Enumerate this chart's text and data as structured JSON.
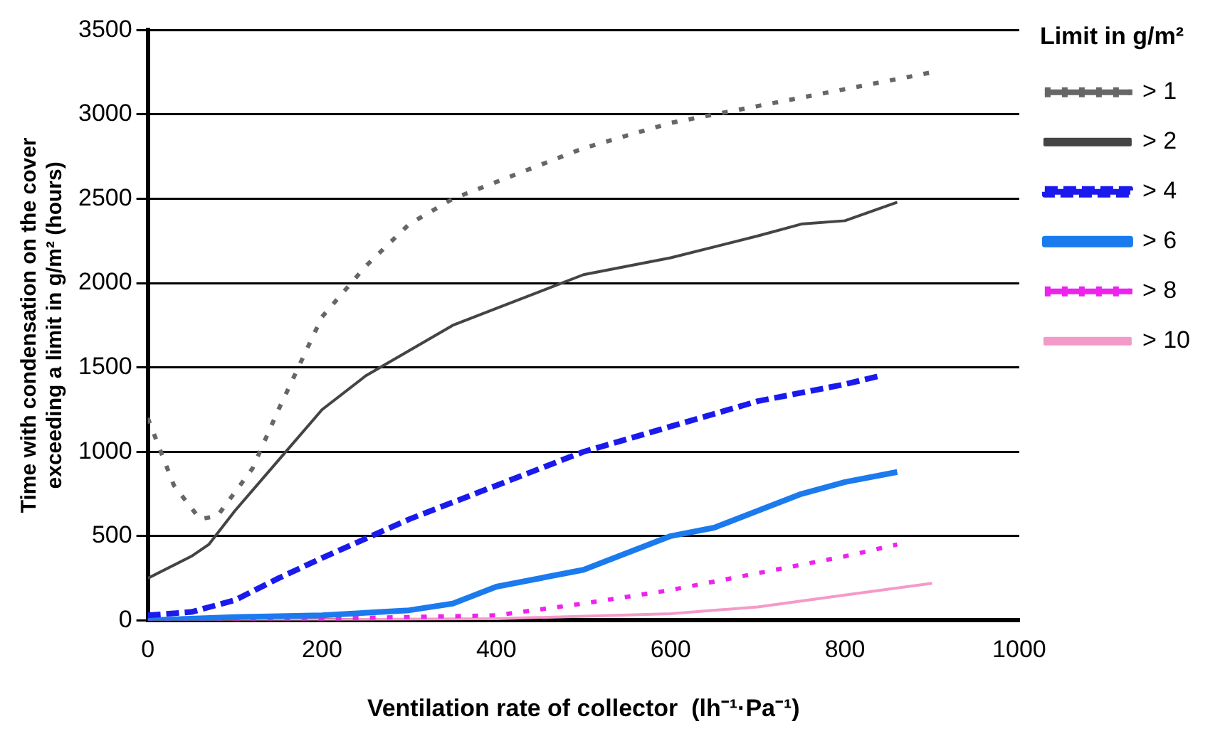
{
  "chart_data": {
    "type": "line",
    "xlabel": "Ventilation rate of collector  (lh⁻¹·Pa⁻¹)",
    "ylabel": "Time with condensation on the cover exceeding a limit in g/m² (hours)",
    "legend_title": "Limit in g/m²",
    "xlim": [
      0,
      1000
    ],
    "xticks": [
      0,
      200,
      400,
      600,
      800,
      1000
    ],
    "ylim": [
      0,
      3500
    ],
    "yticks": [
      0,
      500,
      1000,
      1500,
      2000,
      2500,
      3000,
      3500
    ],
    "grid": "y",
    "legend": "right",
    "marker": "none",
    "series": [
      {
        "name": "> 1",
        "color": "#666666",
        "line_style": "dotted",
        "x": [
          0,
          30,
          60,
          80,
          120,
          150,
          200,
          250,
          300,
          350,
          400,
          450,
          500,
          600,
          700,
          800,
          900
        ],
        "values": [
          1200,
          800,
          600,
          620,
          900,
          1250,
          1800,
          2100,
          2350,
          2500,
          2600,
          2700,
          2800,
          2950,
          3050,
          3150,
          3250
        ]
      },
      {
        "name": "> 2",
        "color": "#444444",
        "line_style": "solid",
        "x": [
          0,
          50,
          70,
          100,
          150,
          200,
          250,
          300,
          350,
          400,
          500,
          600,
          700,
          750,
          800,
          860
        ],
        "values": [
          250,
          380,
          450,
          650,
          950,
          1250,
          1450,
          1600,
          1750,
          1850,
          2050,
          2150,
          2280,
          2350,
          2370,
          2480
        ]
      },
      {
        "name": "> 4",
        "color": "#1a1aee",
        "line_style": "dashed",
        "x": [
          0,
          50,
          100,
          150,
          200,
          300,
          400,
          500,
          600,
          700,
          800,
          840
        ],
        "values": [
          30,
          50,
          120,
          250,
          370,
          600,
          800,
          1000,
          1150,
          1300,
          1400,
          1450
        ]
      },
      {
        "name": "> 6",
        "color": "#1a7aee",
        "line_style": "solid",
        "x": [
          0,
          100,
          200,
          300,
          350,
          400,
          500,
          550,
          600,
          650,
          700,
          750,
          800,
          860
        ],
        "values": [
          0,
          20,
          30,
          60,
          100,
          200,
          300,
          400,
          500,
          550,
          650,
          750,
          820,
          880
        ]
      },
      {
        "name": "> 8",
        "color": "#ee22ee",
        "line_style": "dotted",
        "x": [
          0,
          200,
          400,
          500,
          600,
          700,
          800,
          860
        ],
        "values": [
          0,
          10,
          30,
          100,
          180,
          280,
          380,
          450
        ]
      },
      {
        "name": "> 10",
        "color": "#f49ac8",
        "line_style": "solid",
        "x": [
          0,
          400,
          600,
          700,
          800,
          900
        ],
        "values": [
          0,
          10,
          40,
          80,
          150,
          220
        ]
      }
    ]
  }
}
